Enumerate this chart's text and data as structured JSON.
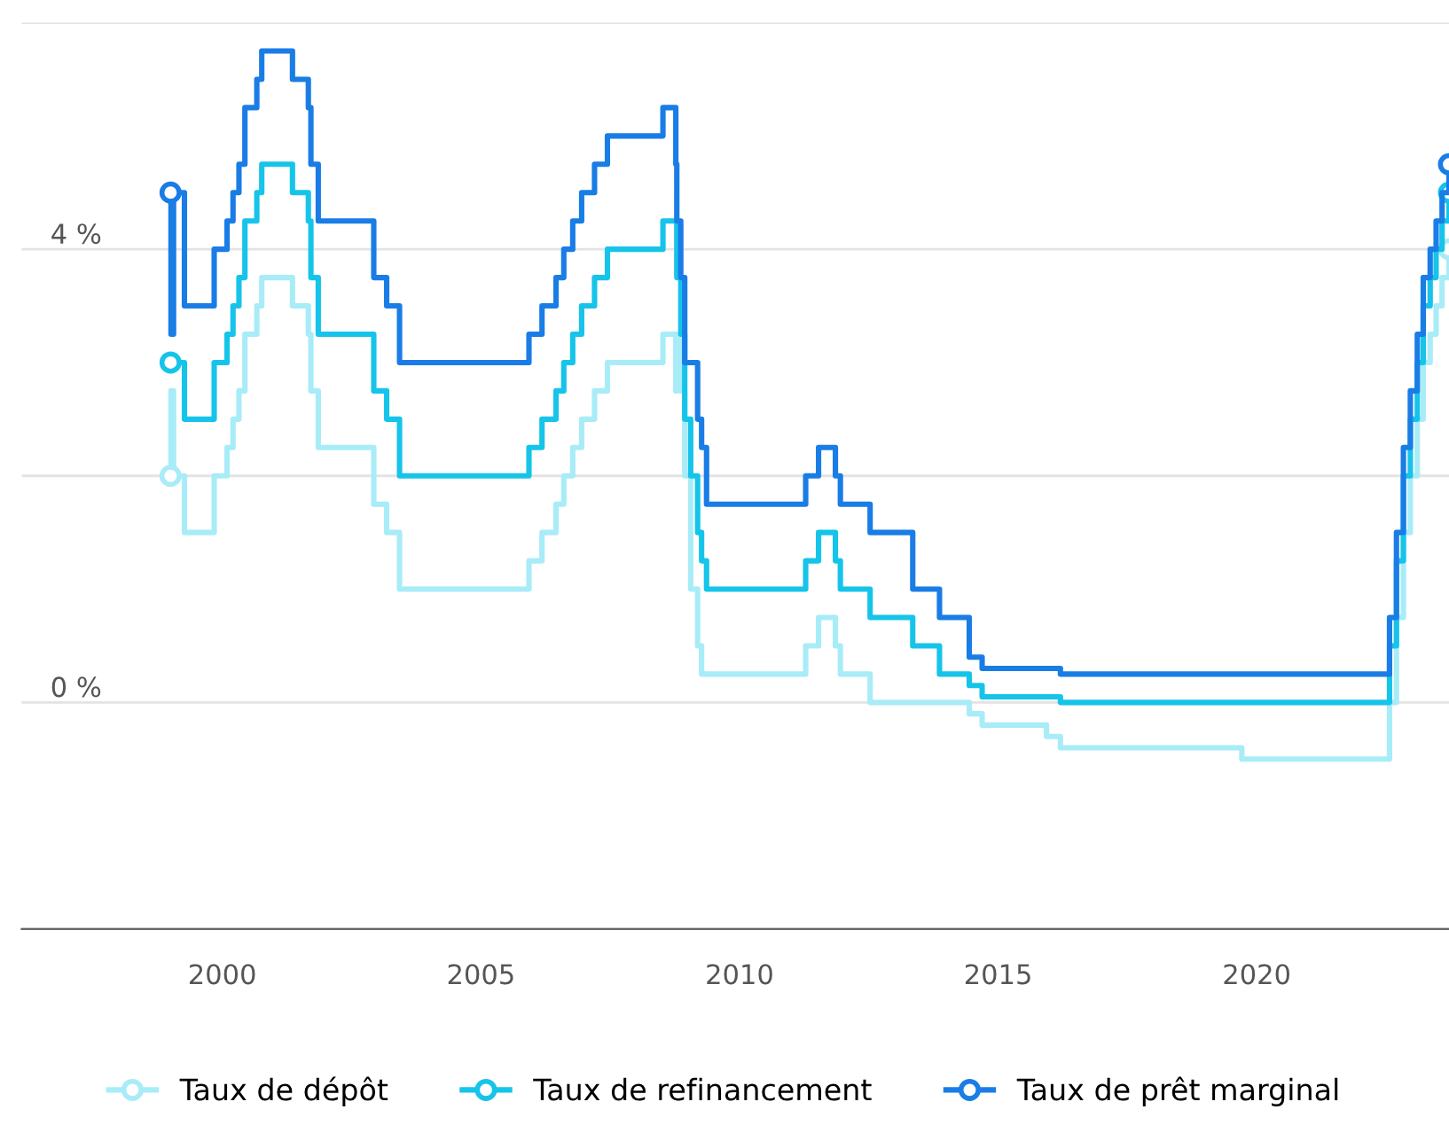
{
  "chart_data": {
    "type": "step",
    "x": [
      "1999-01-01",
      "1999-01-04",
      "1999-01-22",
      "1999-04-09",
      "1999-11-05",
      "2000-02-04",
      "2000-03-17",
      "2000-04-28",
      "2000-06-09",
      "2000-09-01",
      "2000-10-06",
      "2001-05-11",
      "2001-08-31",
      "2001-09-18",
      "2001-11-09",
      "2002-12-06",
      "2003-03-07",
      "2003-06-06",
      "2005-12-06",
      "2006-03-08",
      "2006-06-15",
      "2006-08-09",
      "2006-10-11",
      "2006-12-13",
      "2007-03-14",
      "2007-06-13",
      "2008-07-09",
      "2008-10-08",
      "2008-10-15",
      "2008-11-12",
      "2008-12-10",
      "2009-01-21",
      "2009-03-11",
      "2009-04-08",
      "2009-05-13",
      "2011-04-13",
      "2011-07-13",
      "2011-11-09",
      "2011-12-14",
      "2012-07-11",
      "2013-05-08",
      "2013-11-13",
      "2014-06-11",
      "2014-09-10",
      "2015-12-09",
      "2016-03-16",
      "2019-09-18",
      "2022-07-27",
      "2022-09-14",
      "2022-11-02",
      "2022-12-21",
      "2023-02-08",
      "2023-03-22",
      "2023-05-10",
      "2023-06-21",
      "2023-08-02",
      "2023-09-20"
    ],
    "series": [
      {
        "name": "Taux de dépôt",
        "color": "#a8ecf8",
        "values": [
          2.0,
          2.75,
          2.0,
          1.5,
          2.0,
          2.25,
          2.5,
          2.75,
          3.25,
          3.5,
          3.75,
          3.5,
          3.25,
          2.75,
          2.25,
          1.75,
          1.5,
          1.0,
          1.25,
          1.5,
          1.75,
          2.0,
          2.25,
          2.5,
          2.75,
          3.0,
          3.25,
          2.75,
          3.25,
          2.75,
          2.0,
          1.0,
          0.5,
          0.25,
          0.25,
          0.5,
          0.75,
          0.5,
          0.25,
          0.0,
          0.0,
          0.0,
          -0.1,
          -0.2,
          -0.3,
          -0.4,
          -0.5,
          0.0,
          0.75,
          1.5,
          2.0,
          2.5,
          3.0,
          3.25,
          3.5,
          3.75,
          4.0
        ]
      },
      {
        "name": "Taux de refinancement",
        "color": "#16c4ea",
        "values": [
          3.0,
          3.0,
          3.0,
          2.5,
          3.0,
          3.25,
          3.5,
          3.75,
          4.25,
          4.5,
          4.75,
          4.5,
          4.25,
          3.75,
          3.25,
          2.75,
          2.5,
          2.0,
          2.25,
          2.5,
          2.75,
          3.0,
          3.25,
          3.5,
          3.75,
          4.0,
          4.25,
          4.25,
          3.75,
          3.25,
          2.5,
          2.0,
          1.5,
          1.25,
          1.0,
          1.25,
          1.5,
          1.25,
          1.0,
          0.75,
          0.5,
          0.25,
          0.15,
          0.05,
          0.05,
          0.0,
          0.0,
          0.5,
          1.25,
          2.0,
          2.5,
          3.0,
          3.5,
          3.75,
          4.0,
          4.25,
          4.5
        ]
      },
      {
        "name": "Taux de prêt marginal",
        "color": "#1a7de6",
        "values": [
          4.5,
          3.25,
          4.5,
          3.5,
          4.0,
          4.25,
          4.5,
          4.75,
          5.25,
          5.5,
          5.75,
          5.5,
          5.25,
          4.75,
          4.25,
          3.75,
          3.5,
          3.0,
          3.25,
          3.5,
          3.75,
          4.0,
          4.25,
          4.5,
          4.75,
          5.0,
          5.25,
          4.75,
          4.25,
          3.75,
          3.0,
          3.0,
          2.5,
          2.25,
          1.75,
          2.0,
          2.25,
          2.0,
          1.75,
          1.5,
          1.0,
          0.75,
          0.4,
          0.3,
          0.3,
          0.25,
          0.25,
          0.75,
          1.5,
          2.25,
          2.75,
          3.25,
          3.75,
          4.0,
          4.25,
          4.5,
          4.75
        ]
      }
    ],
    "xlim": [
      "1996-02-15",
      "2023-09-20"
    ],
    "xticks": [
      {
        "value": "2000-01-01",
        "label": "2000"
      },
      {
        "value": "2005-01-01",
        "label": "2005"
      },
      {
        "value": "2010-01-01",
        "label": "2010"
      },
      {
        "value": "2015-01-01",
        "label": "2015"
      },
      {
        "value": "2020-01-01",
        "label": "2020"
      }
    ],
    "ylim": [
      -2,
      6
    ],
    "yticks": [
      {
        "value": -2,
        "label": null
      },
      {
        "value": 0,
        "label": "0 %"
      },
      {
        "value": 2,
        "label": null
      },
      {
        "value": 4,
        "label": "4 %"
      },
      {
        "value": 6,
        "label": null
      }
    ],
    "grid": "y",
    "legend": "bottom",
    "line_style": "solid"
  }
}
